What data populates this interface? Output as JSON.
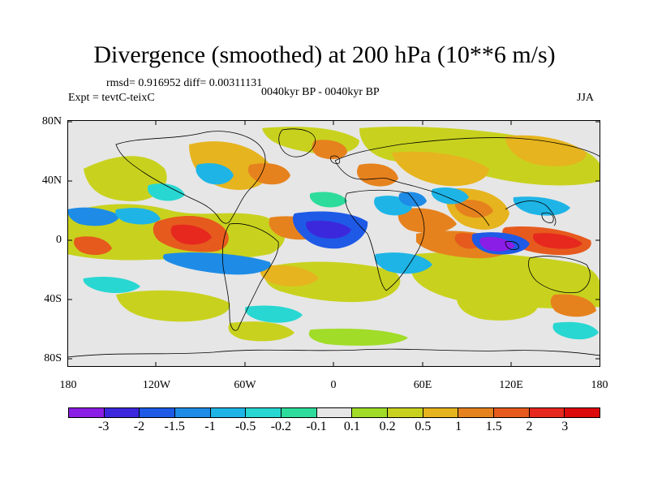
{
  "title": "Divergence (smoothed) at 200 hPa (10**6 m/s)",
  "stats": "rmsd= 0.916952 diff= 0.00311131",
  "experiment": "Expt = tevtC-teixC",
  "period": "0040kyr BP - 0040kyr BP",
  "season": "JJA",
  "lat_labels": [
    "80N",
    "40N",
    "0",
    "40S",
    "80S"
  ],
  "lon_labels": [
    "180",
    "120W",
    "60W",
    "0",
    "60E",
    "120E",
    "180"
  ],
  "colorbar": {
    "levels": [
      "-3",
      "-2",
      "-1.5",
      "-1",
      "-0.5",
      "-0.2",
      "-0.1",
      "0.1",
      "0.2",
      "0.5",
      "1",
      "1.5",
      "2",
      "3"
    ],
    "colors": [
      "#8b1ee6",
      "#3c28dc",
      "#1e5ae6",
      "#1e8ce6",
      "#1eb4e6",
      "#28d7d2",
      "#2ddc9b",
      "#e6e6e6",
      "#a0dc28",
      "#c8d21e",
      "#e6b41e",
      "#e6821e",
      "#e65a1e",
      "#e6281e",
      "#dc0a0a"
    ]
  }
}
